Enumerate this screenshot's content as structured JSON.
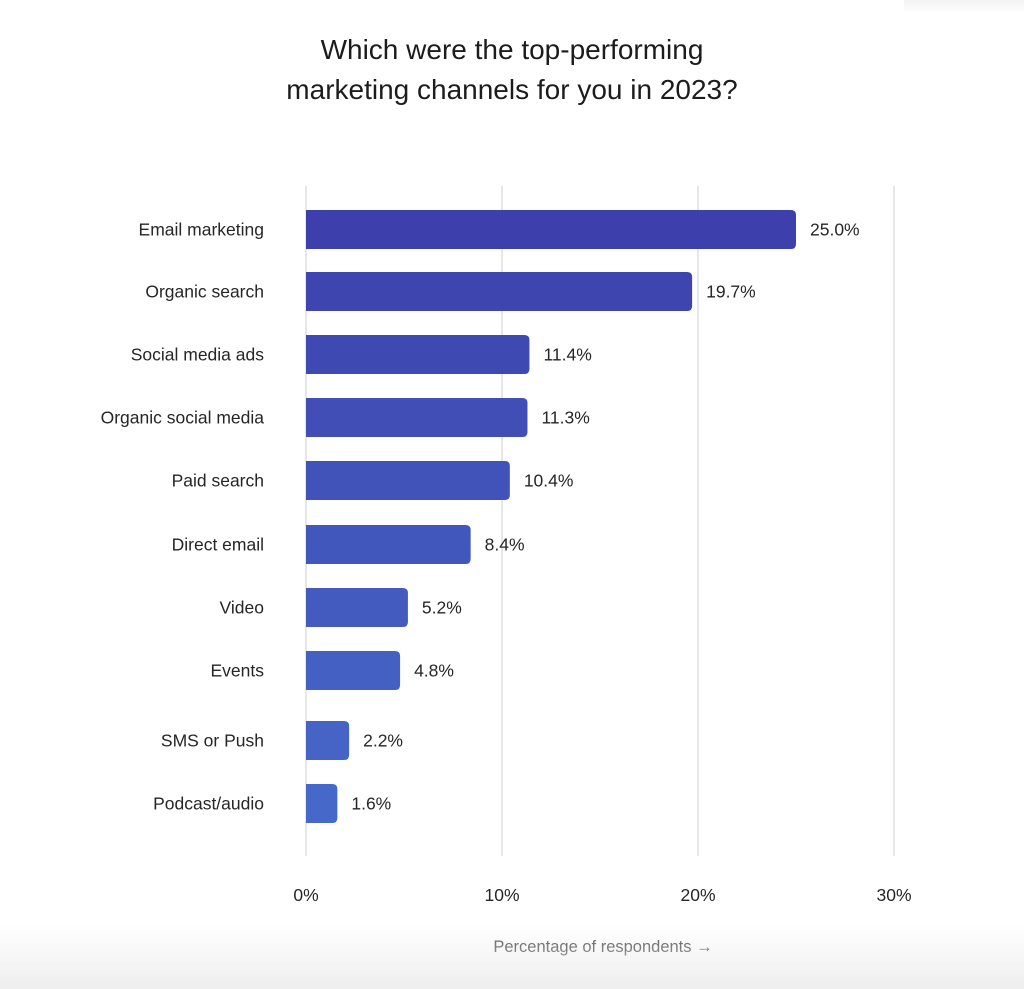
{
  "chart_data": {
    "type": "bar",
    "orientation": "horizontal",
    "title": "Which were the top-performing marketing channels for you in 2023?",
    "title_lines": [
      "Which were the top-performing",
      "marketing channels for you in 2023?"
    ],
    "categories": [
      "Email marketing",
      "Organic search",
      "Social media ads",
      "Organic social media",
      "Paid search",
      "Direct email",
      "Video",
      "Events",
      "SMS or Push",
      "Podcast/audio"
    ],
    "values": [
      25.0,
      19.7,
      11.4,
      11.3,
      10.4,
      8.4,
      5.2,
      4.8,
      2.2,
      1.6
    ],
    "value_labels": [
      "25.0%",
      "19.7%",
      "11.4%",
      "11.3%",
      "10.4%",
      "8.4%",
      "5.2%",
      "4.8%",
      "2.2%",
      "1.6%"
    ],
    "xlabel": "Percentage of respondents →",
    "ylabel": "",
    "xlim": [
      0,
      30
    ],
    "xticks": [
      0,
      10,
      20,
      30
    ],
    "xtick_labels": [
      "0%",
      "10%",
      "20%",
      "30%"
    ],
    "grid": true,
    "legend": "none",
    "colors": {
      "bar_top": "#3d40ac",
      "bar_bottom": "#4669c9",
      "grid": "#e6e6e6",
      "text": "#262626"
    }
  }
}
